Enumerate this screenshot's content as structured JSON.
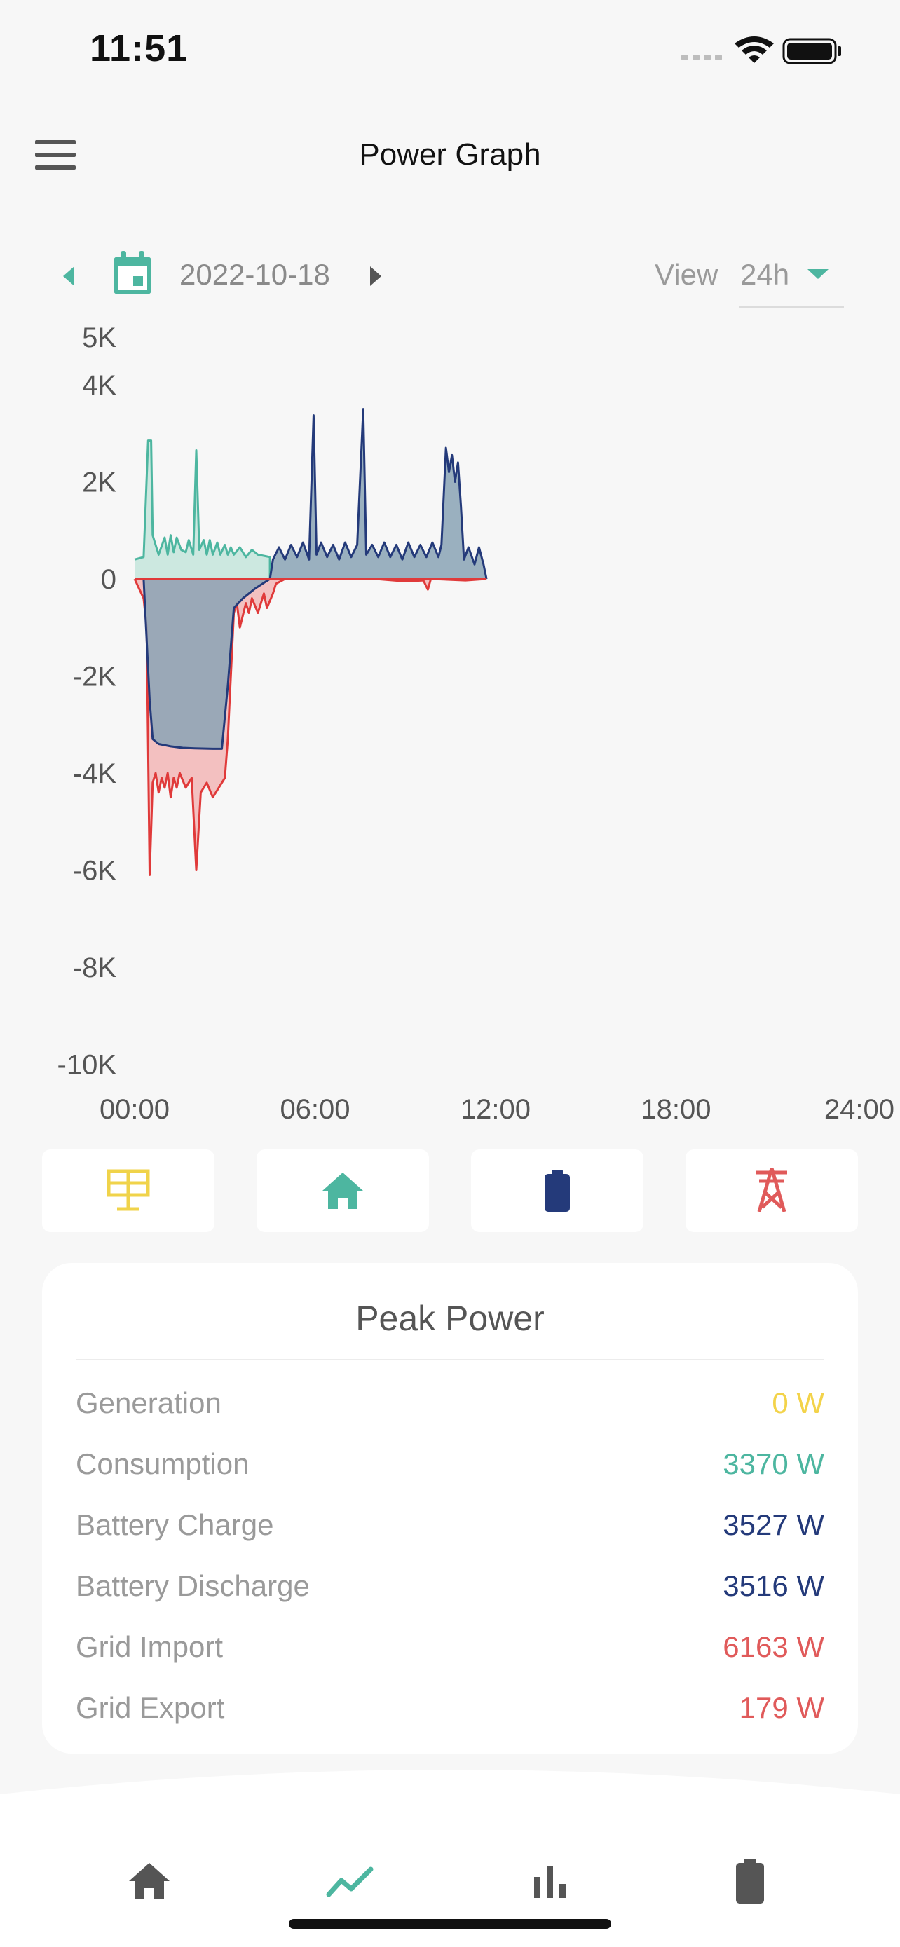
{
  "status_bar": {
    "time": "11:51"
  },
  "header": {
    "title": "Power Graph",
    "menu_icon": "hamburger-menu-icon"
  },
  "date_bar": {
    "date": "2022-10-18",
    "view_label": "View",
    "view_value": "24h",
    "accent": "#4db6a0"
  },
  "chart_data": {
    "type": "area",
    "x_unit": "hours",
    "x_ticks": [
      "00:00",
      "06:00",
      "12:00",
      "18:00",
      "24:00"
    ],
    "xlim": [
      0,
      24
    ],
    "y_ticks": [
      {
        "v": 5000,
        "label": "5K"
      },
      {
        "v": 4000,
        "label": "4K"
      },
      {
        "v": 2000,
        "label": "2K"
      },
      {
        "v": 0,
        "label": "0"
      },
      {
        "v": -2000,
        "label": "-2K"
      },
      {
        "v": -4000,
        "label": "-4K"
      },
      {
        "v": -6000,
        "label": "-6K"
      },
      {
        "v": -8000,
        "label": "-8K"
      },
      {
        "v": -10000,
        "label": "-10K"
      }
    ],
    "ylim": [
      -10000,
      5000
    ],
    "series": [
      {
        "key": "consumption",
        "color": "#4db6a0",
        "fill": "#c6e6dd",
        "points": [
          [
            0.0,
            400
          ],
          [
            0.3,
            450
          ],
          [
            0.45,
            2850
          ],
          [
            0.55,
            2850
          ],
          [
            0.6,
            900
          ],
          [
            0.7,
            700
          ],
          [
            0.8,
            500
          ],
          [
            1.0,
            850
          ],
          [
            1.1,
            500
          ],
          [
            1.2,
            900
          ],
          [
            1.3,
            550
          ],
          [
            1.4,
            850
          ],
          [
            1.55,
            600
          ],
          [
            1.7,
            550
          ],
          [
            1.8,
            800
          ],
          [
            1.95,
            500
          ],
          [
            2.05,
            2650
          ],
          [
            2.15,
            600
          ],
          [
            2.3,
            800
          ],
          [
            2.4,
            500
          ],
          [
            2.5,
            800
          ],
          [
            2.6,
            500
          ],
          [
            2.75,
            750
          ],
          [
            2.85,
            500
          ],
          [
            3.0,
            700
          ],
          [
            3.1,
            500
          ],
          [
            3.2,
            650
          ],
          [
            3.3,
            500
          ],
          [
            3.5,
            650
          ],
          [
            3.7,
            450
          ],
          [
            3.9,
            600
          ],
          [
            4.1,
            500
          ],
          [
            4.5,
            450
          ],
          [
            4.5,
            0
          ]
        ]
      },
      {
        "key": "grid",
        "color": "#e03a3a",
        "fill": "#f2b9b9",
        "points": [
          [
            0.0,
            0
          ],
          [
            0.3,
            -400
          ],
          [
            0.4,
            -1000
          ],
          [
            0.5,
            -6100
          ],
          [
            0.6,
            -4200
          ],
          [
            0.7,
            -4000
          ],
          [
            0.8,
            -4400
          ],
          [
            0.9,
            -4100
          ],
          [
            1.0,
            -4300
          ],
          [
            1.1,
            -4000
          ],
          [
            1.2,
            -4500
          ],
          [
            1.3,
            -4100
          ],
          [
            1.4,
            -4300
          ],
          [
            1.5,
            -4000
          ],
          [
            1.7,
            -4300
          ],
          [
            1.9,
            -4100
          ],
          [
            2.05,
            -6000
          ],
          [
            2.2,
            -4400
          ],
          [
            2.4,
            -4200
          ],
          [
            2.6,
            -4500
          ],
          [
            2.8,
            -4300
          ],
          [
            3.0,
            -4100
          ],
          [
            3.1,
            -3300
          ],
          [
            3.3,
            -700
          ],
          [
            3.4,
            -500
          ],
          [
            3.5,
            -1000
          ],
          [
            3.7,
            -500
          ],
          [
            3.8,
            -700
          ],
          [
            3.9,
            -400
          ],
          [
            4.1,
            -700
          ],
          [
            4.3,
            -300
          ],
          [
            4.4,
            -600
          ],
          [
            4.6,
            -300
          ],
          [
            4.7,
            -100
          ],
          [
            5.0,
            0
          ],
          [
            8.0,
            0
          ],
          [
            9.0,
            -50
          ],
          [
            9.6,
            -30
          ],
          [
            9.75,
            -220
          ],
          [
            9.85,
            0
          ],
          [
            11.0,
            -30
          ],
          [
            11.7,
            0
          ]
        ]
      },
      {
        "key": "battery",
        "color": "#243a7a",
        "fill": "#8aa3b5",
        "points": [
          [
            0.0,
            0
          ],
          [
            0.3,
            0
          ],
          [
            0.5,
            -2500
          ],
          [
            0.6,
            -3300
          ],
          [
            0.8,
            -3400
          ],
          [
            1.2,
            -3450
          ],
          [
            1.6,
            -3480
          ],
          [
            2.0,
            -3490
          ],
          [
            2.6,
            -3500
          ],
          [
            2.9,
            -3500
          ],
          [
            3.1,
            -2200
          ],
          [
            3.3,
            -600
          ],
          [
            3.6,
            -400
          ],
          [
            4.0,
            -200
          ],
          [
            4.5,
            0
          ],
          [
            4.6,
            400
          ],
          [
            4.8,
            650
          ],
          [
            5.0,
            400
          ],
          [
            5.2,
            700
          ],
          [
            5.4,
            450
          ],
          [
            5.6,
            750
          ],
          [
            5.8,
            400
          ],
          [
            5.95,
            3370
          ],
          [
            6.05,
            500
          ],
          [
            6.2,
            750
          ],
          [
            6.4,
            450
          ],
          [
            6.6,
            700
          ],
          [
            6.8,
            400
          ],
          [
            7.0,
            750
          ],
          [
            7.2,
            450
          ],
          [
            7.4,
            700
          ],
          [
            7.6,
            3500
          ],
          [
            7.7,
            500
          ],
          [
            7.9,
            700
          ],
          [
            8.1,
            450
          ],
          [
            8.3,
            750
          ],
          [
            8.5,
            450
          ],
          [
            8.7,
            700
          ],
          [
            8.9,
            400
          ],
          [
            9.1,
            750
          ],
          [
            9.3,
            450
          ],
          [
            9.5,
            700
          ],
          [
            9.7,
            450
          ],
          [
            9.9,
            750
          ],
          [
            10.1,
            450
          ],
          [
            10.2,
            700
          ],
          [
            10.35,
            2700
          ],
          [
            10.45,
            2200
          ],
          [
            10.55,
            2550
          ],
          [
            10.65,
            2000
          ],
          [
            10.75,
            2400
          ],
          [
            10.85,
            1500
          ],
          [
            10.95,
            400
          ],
          [
            11.1,
            650
          ],
          [
            11.3,
            300
          ],
          [
            11.45,
            650
          ],
          [
            11.6,
            300
          ],
          [
            11.7,
            0
          ]
        ]
      }
    ]
  },
  "filters": [
    {
      "name": "solar-filter-button",
      "icon": "solar-panel-icon",
      "color": "#f0d34a"
    },
    {
      "name": "home-filter-button",
      "icon": "home-icon",
      "color": "#4db6a0"
    },
    {
      "name": "battery-filter-button",
      "icon": "battery-icon",
      "color": "#243a7a"
    },
    {
      "name": "grid-filter-button",
      "icon": "power-tower-icon",
      "color": "#e05a5a"
    }
  ],
  "peak": {
    "title": "Peak Power",
    "rows": [
      {
        "label": "Generation",
        "value": "0",
        "unit": "W",
        "color": "#f3d34a"
      },
      {
        "label": "Consumption",
        "value": "3370",
        "unit": "W",
        "color": "#4db6a0"
      },
      {
        "label": "Battery Charge",
        "value": "3527",
        "unit": "W",
        "color": "#243a7a"
      },
      {
        "label": "Battery Discharge",
        "value": "3516",
        "unit": "W",
        "color": "#243a7a"
      },
      {
        "label": "Grid Import",
        "value": "6163",
        "unit": "W",
        "color": "#e05a5a"
      },
      {
        "label": "Grid Export",
        "value": "179",
        "unit": "W",
        "color": "#e05a5a"
      }
    ]
  },
  "nav": [
    {
      "icon": "home-icon",
      "color": "#555555"
    },
    {
      "icon": "trend-line-icon",
      "color": "#4db6a0"
    },
    {
      "icon": "bar-chart-icon",
      "color": "#555555"
    },
    {
      "icon": "battery-icon",
      "color": "#555555"
    }
  ]
}
